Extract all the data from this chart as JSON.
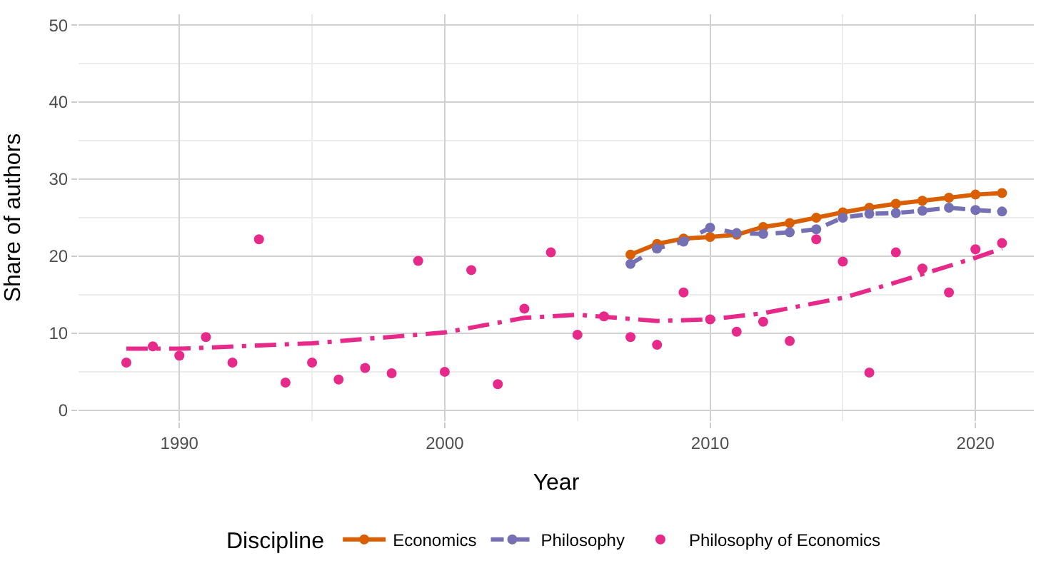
{
  "chart_data": {
    "type": "scatter",
    "xlabel": "Year",
    "ylabel": "Share of authors",
    "legend_title": "Discipline",
    "legend": "bottom",
    "grid": true,
    "xlim": [
      1986.2,
      2022.2
    ],
    "xticks": [
      1990,
      2000,
      2010,
      2020
    ],
    "ylim": [
      -1.4,
      51.4
    ],
    "yticks": [
      0,
      10,
      20,
      30,
      40,
      50
    ],
    "series": [
      {
        "name": "Economics",
        "type": "line",
        "color": "#d95f02",
        "marker": "circle",
        "line_style": "solid",
        "x": [
          2007,
          2008,
          2009,
          2010,
          2011,
          2012,
          2013,
          2014,
          2015,
          2016,
          2017,
          2018,
          2019,
          2020,
          2021
        ],
        "values": [
          20.2,
          21.6,
          22.3,
          22.5,
          22.8,
          23.8,
          24.3,
          25.0,
          25.7,
          26.3,
          26.8,
          27.2,
          27.6,
          28.0,
          28.2
        ]
      },
      {
        "name": "Philosophy",
        "type": "line",
        "color": "#7570b3",
        "marker": "circle",
        "line_style": "dashed",
        "x": [
          2007,
          2008,
          2009,
          2010,
          2011,
          2012,
          2013,
          2014,
          2015,
          2016,
          2017,
          2018,
          2019,
          2020,
          2021
        ],
        "values": [
          19.0,
          21.0,
          21.9,
          23.7,
          23.0,
          22.9,
          23.1,
          23.5,
          25.0,
          25.5,
          25.6,
          25.9,
          26.3,
          26.0,
          25.8
        ]
      },
      {
        "name": "Philosophy of Economics",
        "color": "#e7298a",
        "marker": "circle",
        "x": [
          1988,
          1989,
          1990,
          1991,
          1992,
          1993,
          1994,
          1995,
          1996,
          1997,
          1998,
          1999,
          2000,
          2001,
          2002,
          2003,
          2004,
          2005,
          2006,
          2007,
          2008,
          2009,
          2010,
          2011,
          2012,
          2013,
          2014,
          2015,
          2016,
          2017,
          2018,
          2019,
          2020,
          2021
        ],
        "values": [
          6.2,
          8.3,
          7.1,
          9.5,
          6.2,
          22.2,
          3.6,
          6.2,
          4.0,
          5.5,
          4.8,
          19.4,
          5.0,
          18.2,
          3.4,
          13.2,
          20.5,
          9.8,
          12.2,
          9.5,
          8.5,
          15.3,
          11.8,
          10.2,
          11.5,
          9.0,
          22.2,
          19.3,
          4.9,
          20.5,
          18.4,
          15.3,
          20.9,
          21.7
        ]
      },
      {
        "type": "line",
        "color": "#e7298a",
        "marker": "none",
        "line_style": "dashdot",
        "x": [
          1988,
          1990,
          1995,
          2000,
          2003,
          2005,
          2008,
          2010,
          2012,
          2015,
          2017,
          2020,
          2021
        ],
        "values": [
          8.0,
          8.0,
          8.7,
          10.1,
          12.0,
          12.4,
          11.6,
          11.8,
          12.6,
          14.6,
          16.6,
          19.8,
          21.0
        ]
      }
    ]
  }
}
